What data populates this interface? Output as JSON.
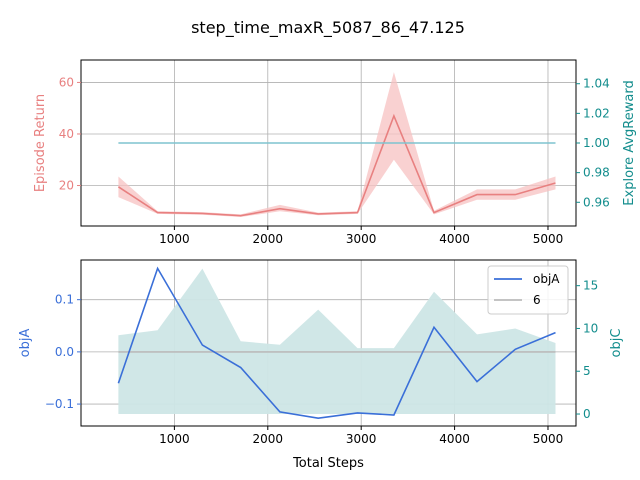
{
  "figure": {
    "title": "step_time_maxR_5087_86_47.125"
  },
  "chart_data": [
    {
      "type": "line",
      "panel": "top",
      "xlim": [
        0,
        5300
      ],
      "x_ticks": [
        1000,
        2000,
        3000,
        4000,
        5000
      ],
      "x_tick_labels": [
        "1000",
        "2000",
        "3000",
        "4000",
        "5000"
      ],
      "grid": true,
      "left_axis": {
        "label": "Episode Return",
        "color": "#e88080",
        "ylim": [
          4.3,
          68.7
        ],
        "ticks": [
          20,
          40,
          60
        ],
        "tick_labels": [
          "20",
          "40",
          "60"
        ]
      },
      "right_axis": {
        "label": "Explore AvgReward",
        "color": "#138d8d",
        "ylim": [
          0.944,
          1.056
        ],
        "ticks": [
          0.96,
          0.98,
          1.0,
          1.02,
          1.04
        ],
        "tick_labels": [
          "0.96",
          "0.98",
          "1.00",
          "1.02",
          "1.04"
        ]
      },
      "series": [
        {
          "axis": "left",
          "kind": "line_with_band",
          "color": "#e88080",
          "band_color": "#f7c1c1",
          "x": [
            400,
            820,
            1300,
            1710,
            2130,
            2540,
            2960,
            3350,
            3780,
            4240,
            4650,
            5080
          ],
          "y": [
            19.5,
            9.5,
            9.2,
            8.3,
            11.0,
            9.0,
            9.5,
            47.0,
            9.5,
            16.5,
            16.5,
            21.0
          ],
          "y_lower": [
            15.5,
            9.0,
            8.7,
            7.8,
            10.0,
            8.5,
            9.0,
            30.0,
            8.8,
            14.5,
            14.5,
            18.5
          ],
          "y_upper": [
            23.5,
            10.0,
            9.7,
            8.8,
            12.5,
            9.5,
            10.0,
            64.0,
            10.2,
            18.5,
            18.5,
            23.5
          ]
        },
        {
          "axis": "right",
          "kind": "line",
          "color": "#7ec4cf",
          "x": [
            400,
            5080
          ],
          "y": [
            1.0,
            1.0
          ]
        }
      ]
    },
    {
      "type": "line",
      "panel": "bottom",
      "xlabel": "Total Steps",
      "xlim": [
        0,
        5300
      ],
      "x_ticks": [
        1000,
        2000,
        3000,
        4000,
        5000
      ],
      "x_tick_labels": [
        "1000",
        "2000",
        "3000",
        "4000",
        "5000"
      ],
      "grid": true,
      "legend_position": "top-right",
      "left_axis": {
        "label": "objA",
        "color": "#3a6fd8",
        "ylim": [
          -0.142,
          0.176
        ],
        "ticks": [
          0.1,
          0.0,
          -0.1
        ],
        "tick_labels": [
          "0.1",
          "0.0",
          "−0.1"
        ]
      },
      "right_axis": {
        "label": "objC",
        "color": "#138d8d",
        "ylim": [
          -1.4,
          18.0
        ],
        "ticks": [
          0,
          5,
          10,
          15
        ],
        "tick_labels": [
          "0",
          "5",
          "10",
          "15"
        ]
      },
      "series": [
        {
          "name": "objC band",
          "axis": "right",
          "kind": "band",
          "color": "#cde6e6",
          "x": [
            400,
            820,
            1300,
            1710,
            2130,
            2540,
            2960,
            3350,
            3780,
            4240,
            4650,
            5080
          ],
          "y_lower": [
            0,
            0,
            0,
            0,
            0,
            0,
            0,
            0,
            0,
            0,
            0,
            0
          ],
          "y_upper": [
            9.2,
            9.8,
            17.0,
            8.5,
            8.1,
            12.2,
            7.7,
            7.7,
            14.3,
            9.3,
            10.0,
            8.3
          ]
        },
        {
          "name": "6",
          "axis": "left",
          "kind": "line",
          "color": "#bbbbbb",
          "x": [
            400,
            5080
          ],
          "y": [
            0.0,
            0.0
          ]
        },
        {
          "name": "objA",
          "axis": "left",
          "kind": "line",
          "color": "#3a6fd8",
          "x": [
            400,
            820,
            1300,
            1710,
            2130,
            2540,
            2960,
            3350,
            3780,
            4240,
            4650,
            5080
          ],
          "y": [
            -0.06,
            0.16,
            0.013,
            -0.03,
            -0.115,
            -0.127,
            -0.117,
            -0.121,
            0.047,
            -0.057,
            0.005,
            0.037
          ]
        }
      ],
      "legend": [
        {
          "label": "objA",
          "color": "#3a6fd8"
        },
        {
          "label": "6",
          "color": "#bbbbbb"
        }
      ]
    }
  ]
}
